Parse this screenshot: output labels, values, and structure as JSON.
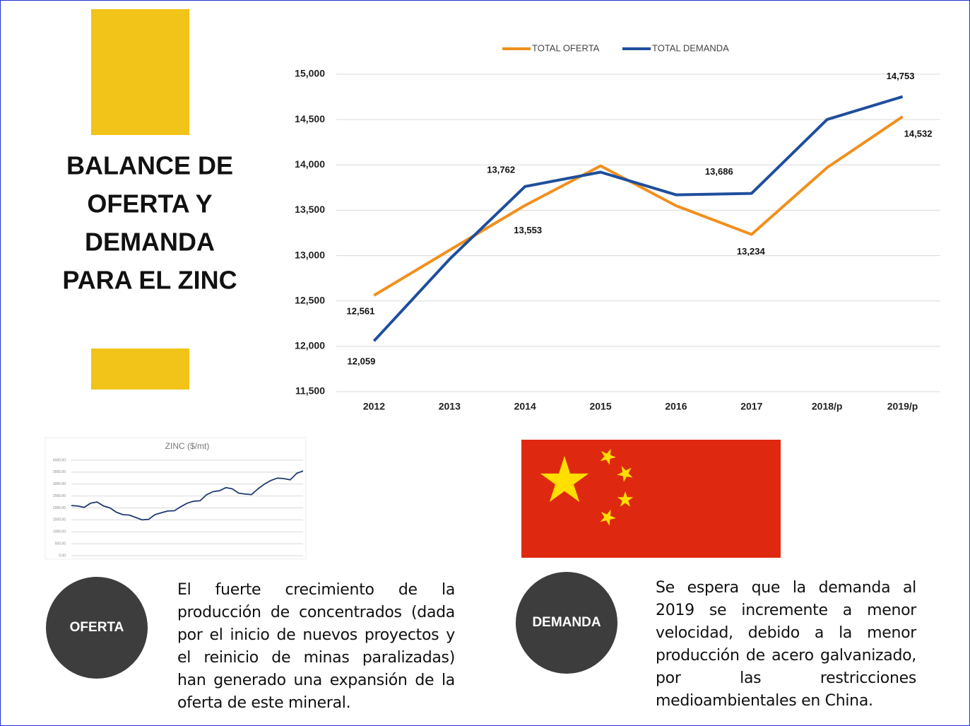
{
  "title_lines": [
    "BALANCE DE",
    "OFERTA Y",
    "DEMANDA",
    "PARA EL ZINC"
  ],
  "chart_data": [
    {
      "type": "line",
      "categories": [
        "2012",
        "2013",
        "2014",
        "2015",
        "2016",
        "2017",
        "2018/p",
        "2019/p"
      ],
      "series": [
        {
          "name": "TOTAL OFERTA",
          "color": "#f0901e",
          "values": [
            12561,
            13060,
            13553,
            13990,
            13550,
            13234,
            13970,
            14532
          ],
          "value_labels": [
            "12,561",
            null,
            "13,553",
            null,
            null,
            "13,234",
            null,
            "14,532"
          ]
        },
        {
          "name": "TOTAL DEMANDA",
          "color": "#1f4e9c",
          "values": [
            12059,
            12960,
            13762,
            13920,
            13670,
            13686,
            14500,
            14753
          ],
          "value_labels": [
            "12,059",
            null,
            "13,762",
            null,
            null,
            "13,686",
            null,
            "14,753"
          ]
        }
      ],
      "ylim": [
        11500,
        15000
      ],
      "yticks": [
        {
          "value": 11500,
          "label": "11,500"
        },
        {
          "value": 12000,
          "label": "12,000"
        },
        {
          "value": 12500,
          "label": "12,500"
        },
        {
          "value": 13000,
          "label": "13,000"
        },
        {
          "value": 13500,
          "label": "13,500"
        },
        {
          "value": 14000,
          "label": "14,000"
        },
        {
          "value": 14500,
          "label": "14,500"
        },
        {
          "value": 15000,
          "label": "15,000"
        }
      ],
      "grid": true,
      "legend": "top"
    },
    {
      "type": "line",
      "title": "ZINC ($/mt)",
      "color": "#1f3b73",
      "values": [
        2100,
        2080,
        2020,
        2200,
        2250,
        2080,
        2000,
        1820,
        1720,
        1700,
        1600,
        1500,
        1520,
        1720,
        1800,
        1870,
        1880,
        2050,
        2200,
        2280,
        2300,
        2550,
        2680,
        2720,
        2850,
        2800,
        2620,
        2580,
        2560,
        2800,
        3000,
        3150,
        3250,
        3230,
        3180,
        3450,
        3550
      ],
      "ylim": [
        0,
        4000
      ],
      "yticks": [
        {
          "value": 0,
          "label": "0.00"
        },
        {
          "value": 500,
          "label": "500.00"
        },
        {
          "value": 1000,
          "label": "1000.00"
        },
        {
          "value": 1500,
          "label": "1500.00"
        },
        {
          "value": 2000,
          "label": "2000.00"
        },
        {
          "value": 2500,
          "label": "2500.00"
        },
        {
          "value": 3000,
          "label": "3000.00"
        },
        {
          "value": 3500,
          "label": "3500.00"
        },
        {
          "value": 4000,
          "label": "4000.00"
        }
      ],
      "grid": true
    }
  ],
  "oferta": {
    "label": "OFERTA",
    "text": "El fuerte crecimiento de la producción de concentrados (dada por el inicio de nuevos proyectos y el reinicio de minas paralizadas) han generado una expansión de la oferta de este mineral."
  },
  "demanda": {
    "label": "DEMANDA",
    "text": "Se espera que la demanda al 2019 se incremente a menor velocidad, debido a la menor producción de acero galvanizado, por las restricciones medioambientales en China."
  }
}
